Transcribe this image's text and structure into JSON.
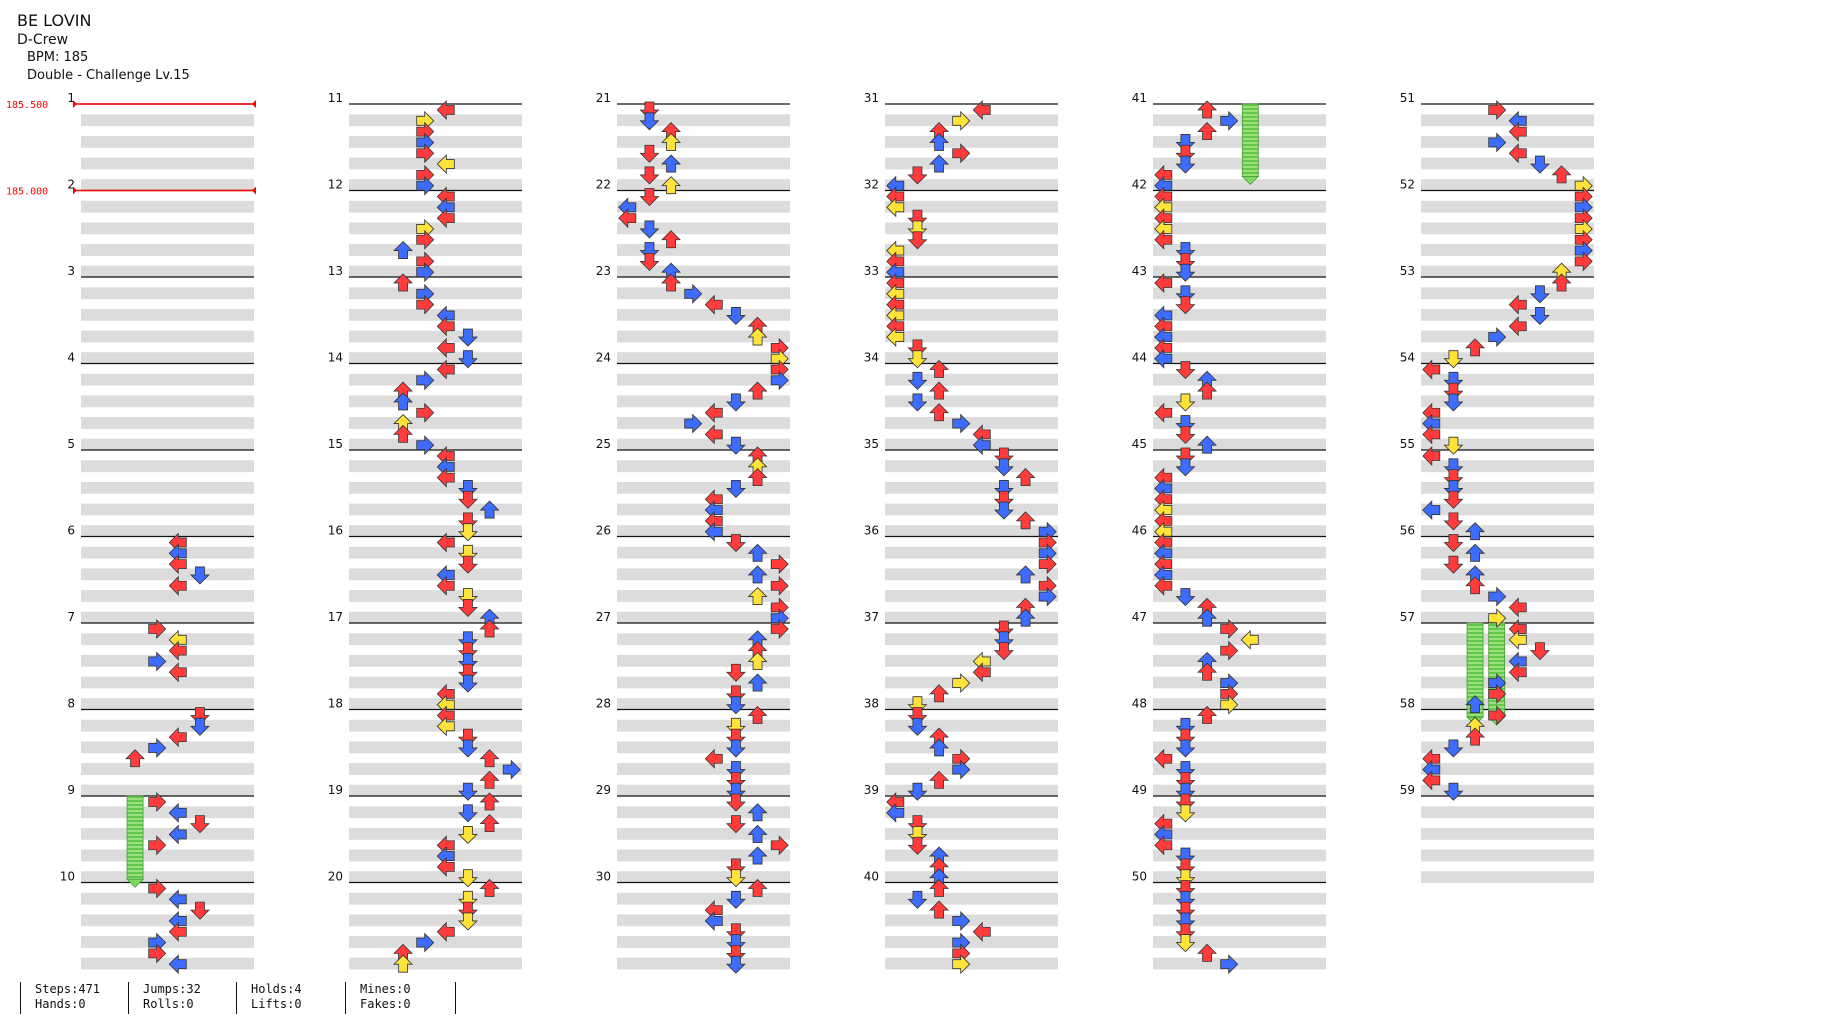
{
  "song": {
    "title": "BE LOVIN",
    "artist": "D-Crew",
    "bpm": "BPM: 185",
    "difficulty": "Double - Challenge  Lv.15"
  },
  "bpm_changes": [
    {
      "measure": 1,
      "label": "185.500"
    },
    {
      "measure": 2,
      "label": "185.000"
    }
  ],
  "measures": [
    "1",
    "2",
    "3",
    "4",
    "5",
    "6",
    "7",
    "8",
    "9",
    "10",
    "11",
    "12",
    "13",
    "14",
    "15",
    "16",
    "17",
    "18",
    "19",
    "20",
    "21",
    "22",
    "23",
    "24",
    "25",
    "26",
    "27",
    "28",
    "29",
    "30",
    "31",
    "32",
    "33",
    "34",
    "35",
    "36",
    "37",
    "38",
    "39",
    "40",
    "41",
    "42",
    "43",
    "44",
    "45",
    "46",
    "47",
    "48",
    "49",
    "50",
    "51",
    "52",
    "53",
    "54",
    "55",
    "56",
    "57",
    "58",
    "59"
  ],
  "colors": {
    "quarter": "#ff3b3b",
    "eighth": "#3d6cff",
    "sixteenth": "#ffe23a",
    "hold": "#7ddc5f",
    "bpm": "#ff0000",
    "band": "#dcdcdc"
  },
  "stats": {
    "steps": "Steps:471",
    "hands": "Hands:0",
    "jumps": "Jumps:32",
    "rolls": "Rolls:0",
    "holds": "Holds:4",
    "lifts": "Lifts:0",
    "mines": "Mines:0",
    "fakes": "Fakes:0"
  }
}
